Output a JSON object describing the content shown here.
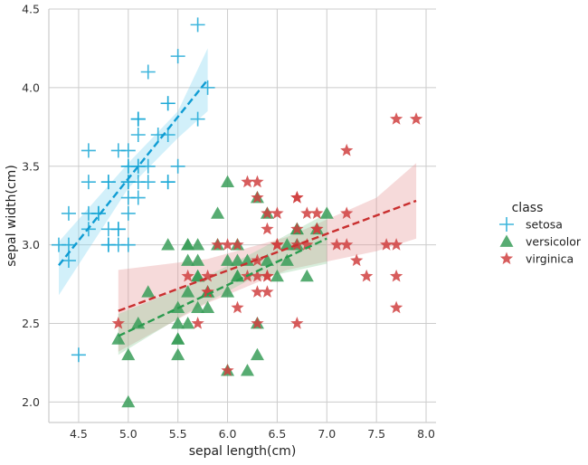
{
  "chart_data": {
    "type": "scatter",
    "title": "",
    "xlabel": "sepal length(cm)",
    "ylabel": "sepal width(cm)",
    "xlim": [
      4.2,
      8.1
    ],
    "ylim": [
      1.87,
      4.5
    ],
    "xticks": [
      "4.5",
      "5.0",
      "5.5",
      "6.0",
      "6.5",
      "7.0",
      "7.5",
      "8.0"
    ],
    "yticks": [
      "2.0",
      "2.5",
      "3.0",
      "3.5",
      "4.0",
      "4.5"
    ],
    "grid": true,
    "legend": {
      "title": "class",
      "position": "right"
    },
    "series": [
      {
        "name": "setosa",
        "marker": "plus",
        "color": "#1ba8d6",
        "points": [
          [
            5.1,
            3.5
          ],
          [
            4.9,
            3.0
          ],
          [
            4.7,
            3.2
          ],
          [
            4.6,
            3.1
          ],
          [
            5.0,
            3.6
          ],
          [
            5.4,
            3.9
          ],
          [
            4.6,
            3.4
          ],
          [
            5.0,
            3.4
          ],
          [
            4.4,
            2.9
          ],
          [
            4.9,
            3.1
          ],
          [
            5.4,
            3.7
          ],
          [
            4.8,
            3.4
          ],
          [
            4.8,
            3.0
          ],
          [
            4.3,
            3.0
          ],
          [
            5.8,
            4.0
          ],
          [
            5.7,
            4.4
          ],
          [
            5.4,
            3.9
          ],
          [
            5.1,
            3.5
          ],
          [
            5.7,
            3.8
          ],
          [
            5.1,
            3.8
          ],
          [
            5.4,
            3.4
          ],
          [
            5.1,
            3.7
          ],
          [
            4.6,
            3.6
          ],
          [
            5.1,
            3.3
          ],
          [
            4.8,
            3.4
          ],
          [
            5.0,
            3.0
          ],
          [
            5.0,
            3.4
          ],
          [
            5.2,
            3.5
          ],
          [
            5.2,
            3.4
          ],
          [
            4.7,
            3.2
          ],
          [
            4.8,
            3.1
          ],
          [
            5.4,
            3.4
          ],
          [
            5.2,
            4.1
          ],
          [
            5.5,
            4.2
          ],
          [
            4.9,
            3.1
          ],
          [
            5.0,
            3.2
          ],
          [
            5.5,
            3.5
          ],
          [
            4.9,
            3.6
          ],
          [
            4.4,
            3.0
          ],
          [
            5.1,
            3.4
          ],
          [
            5.0,
            3.5
          ],
          [
            4.5,
            2.3
          ],
          [
            4.4,
            3.2
          ],
          [
            5.0,
            3.5
          ],
          [
            5.1,
            3.8
          ],
          [
            4.8,
            3.0
          ],
          [
            5.1,
            3.8
          ],
          [
            4.6,
            3.2
          ],
          [
            5.3,
            3.7
          ],
          [
            5.0,
            3.3
          ]
        ],
        "fit": {
          "x": [
            4.3,
            5.8
          ],
          "y": [
            2.87,
            4.05
          ]
        }
      },
      {
        "name": "versicolor",
        "marker": "triangle",
        "color": "#3a9e59",
        "points": [
          [
            7.0,
            3.2
          ],
          [
            6.4,
            3.2
          ],
          [
            6.9,
            3.1
          ],
          [
            5.5,
            2.3
          ],
          [
            6.5,
            2.8
          ],
          [
            5.7,
            2.8
          ],
          [
            6.3,
            3.3
          ],
          [
            4.9,
            2.4
          ],
          [
            6.6,
            2.9
          ],
          [
            5.2,
            2.7
          ],
          [
            5.0,
            2.0
          ],
          [
            5.9,
            3.0
          ],
          [
            6.0,
            2.2
          ],
          [
            6.1,
            2.9
          ],
          [
            5.6,
            2.9
          ],
          [
            6.7,
            3.1
          ],
          [
            5.6,
            3.0
          ],
          [
            5.8,
            2.7
          ],
          [
            6.2,
            2.2
          ],
          [
            5.6,
            2.5
          ],
          [
            5.9,
            3.2
          ],
          [
            6.1,
            2.8
          ],
          [
            6.3,
            2.5
          ],
          [
            6.1,
            2.8
          ],
          [
            6.4,
            2.9
          ],
          [
            6.6,
            3.0
          ],
          [
            6.8,
            2.8
          ],
          [
            6.7,
            3.0
          ],
          [
            6.0,
            2.9
          ],
          [
            5.7,
            2.6
          ],
          [
            5.5,
            2.4
          ],
          [
            5.5,
            2.4
          ],
          [
            5.8,
            2.7
          ],
          [
            6.0,
            2.7
          ],
          [
            5.4,
            3.0
          ],
          [
            6.0,
            3.4
          ],
          [
            6.7,
            3.1
          ],
          [
            6.3,
            2.3
          ],
          [
            5.6,
            3.0
          ],
          [
            5.5,
            2.5
          ],
          [
            5.5,
            2.6
          ],
          [
            6.1,
            3.0
          ],
          [
            5.8,
            2.6
          ],
          [
            5.0,
            2.3
          ],
          [
            5.6,
            2.7
          ],
          [
            5.7,
            3.0
          ],
          [
            5.7,
            2.9
          ],
          [
            6.2,
            2.9
          ],
          [
            5.1,
            2.5
          ],
          [
            5.7,
            2.8
          ]
        ],
        "fit": {
          "x": [
            4.9,
            7.0
          ],
          "y": [
            2.42,
            3.04
          ]
        }
      },
      {
        "name": "virginica",
        "marker": "star",
        "color": "#d03f3f",
        "points": [
          [
            6.3,
            3.3
          ],
          [
            5.8,
            2.7
          ],
          [
            7.1,
            3.0
          ],
          [
            6.3,
            2.9
          ],
          [
            6.5,
            3.0
          ],
          [
            7.6,
            3.0
          ],
          [
            4.9,
            2.5
          ],
          [
            7.3,
            2.9
          ],
          [
            6.7,
            2.5
          ],
          [
            7.2,
            3.6
          ],
          [
            6.5,
            3.2
          ],
          [
            6.4,
            2.7
          ],
          [
            6.8,
            3.0
          ],
          [
            5.7,
            2.5
          ],
          [
            5.8,
            2.8
          ],
          [
            6.4,
            3.2
          ],
          [
            6.5,
            3.0
          ],
          [
            7.7,
            3.8
          ],
          [
            7.7,
            2.6
          ],
          [
            6.0,
            2.2
          ],
          [
            6.9,
            3.2
          ],
          [
            5.6,
            2.8
          ],
          [
            7.7,
            2.8
          ],
          [
            6.3,
            2.7
          ],
          [
            6.7,
            3.3
          ],
          [
            7.2,
            3.2
          ],
          [
            6.2,
            2.8
          ],
          [
            6.1,
            3.0
          ],
          [
            6.4,
            2.8
          ],
          [
            7.2,
            3.0
          ],
          [
            7.4,
            2.8
          ],
          [
            7.9,
            3.8
          ],
          [
            6.4,
            2.8
          ],
          [
            6.3,
            2.8
          ],
          [
            6.1,
            2.6
          ],
          [
            7.7,
            3.0
          ],
          [
            6.3,
            3.4
          ],
          [
            6.4,
            3.1
          ],
          [
            6.0,
            3.0
          ],
          [
            6.9,
            3.1
          ],
          [
            6.7,
            3.1
          ],
          [
            6.9,
            3.1
          ],
          [
            5.8,
            2.7
          ],
          [
            6.8,
            3.2
          ],
          [
            6.7,
            3.3
          ],
          [
            6.7,
            3.0
          ],
          [
            6.3,
            2.5
          ],
          [
            6.5,
            3.0
          ],
          [
            6.2,
            3.4
          ],
          [
            5.9,
            3.0
          ]
        ],
        "fit": {
          "x": [
            4.9,
            7.9
          ],
          "y": [
            2.58,
            3.28
          ]
        }
      }
    ]
  }
}
